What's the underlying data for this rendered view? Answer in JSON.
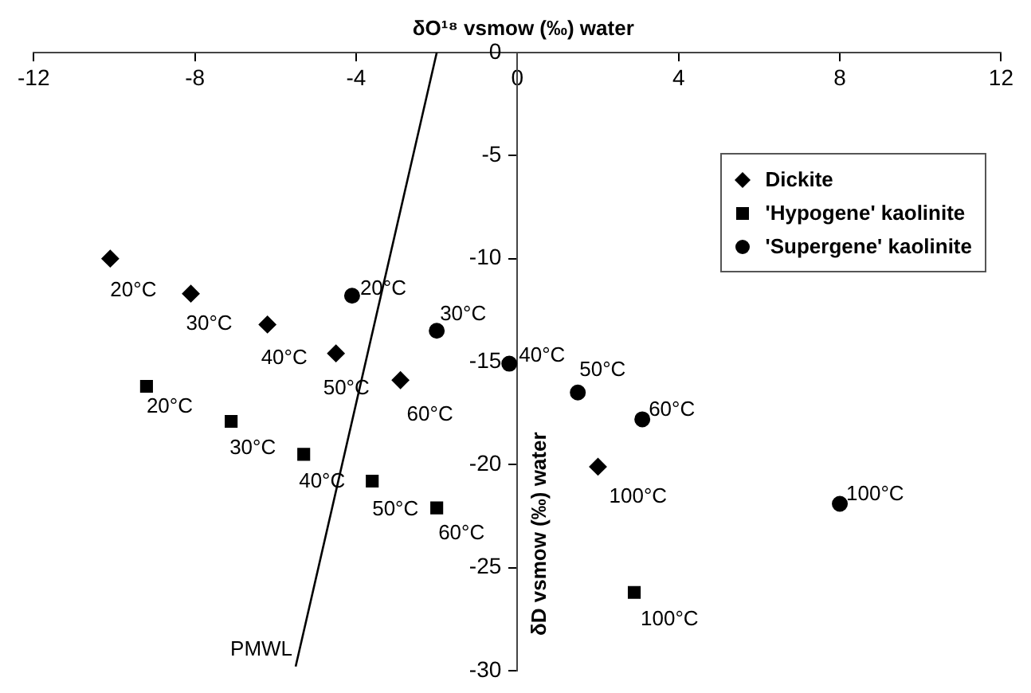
{
  "chart_data": {
    "type": "scatter",
    "xlabel": "δO¹⁸ vsmow (‰) water",
    "ylabel": "δD vsmow (‰) water",
    "xlim": [
      -12,
      12
    ],
    "xticks": [
      -12,
      -8,
      -4,
      0,
      4,
      8,
      12
    ],
    "ylim": [
      -30,
      0
    ],
    "yticks": [
      -30,
      -25,
      -20,
      -15,
      -10,
      -5,
      0
    ],
    "grid": false,
    "legend": "top right",
    "series": [
      {
        "name": "Dickite",
        "color": "#000000",
        "marker": "diamond",
        "x": [
          -10.1,
          -8.1,
          -6.2,
          -4.5,
          -2.9,
          2.0
        ],
        "values": [
          -10,
          -11.7,
          -13.2,
          -14.6,
          -15.9,
          -20.1
        ]
      },
      {
        "name": "'Hypogene' kaolinite",
        "color": "#000000",
        "marker": "square",
        "x": [
          -9.2,
          -7.1,
          -5.3,
          -3.6,
          -2.0,
          2.9
        ],
        "values": [
          -16.2,
          -17.9,
          -19.5,
          -20.8,
          -22.1,
          -26.2
        ]
      },
      {
        "name": "'Supergene' kaolinite",
        "color": "#000000",
        "marker": "circle",
        "x": [
          -4.1,
          -2.0,
          -0.2,
          1.5,
          3.1,
          8.0
        ],
        "values": [
          -11.8,
          -13.5,
          -15.1,
          -16.5,
          -17.8,
          -21.9
        ]
      },
      {
        "name": "PMWL",
        "type": "line",
        "color": "#000000",
        "marker": "none",
        "x": [
          -2.0,
          -5.5
        ],
        "values": [
          0,
          -29.8
        ]
      }
    ],
    "annotations": [
      {
        "text": "20°C",
        "x": -10.1,
        "y": -10
      },
      {
        "text": "30°C",
        "x": -8.1,
        "y": -11.7
      },
      {
        "text": "40°C",
        "x": -6.2,
        "y": -13.2
      },
      {
        "text": "50°C",
        "x": -4.5,
        "y": -14.6
      },
      {
        "text": "60°C",
        "x": -2.9,
        "y": -15.9
      },
      {
        "text": "100°C",
        "x": 2.0,
        "y": -20.1
      },
      {
        "text": "20°C",
        "x": -9.2,
        "y": -16.2
      },
      {
        "text": "30°C",
        "x": -7.1,
        "y": -17.9
      },
      {
        "text": "40°C",
        "x": -5.3,
        "y": -19.5
      },
      {
        "text": "50°C",
        "x": -3.6,
        "y": -20.8
      },
      {
        "text": "60°C",
        "x": -2.0,
        "y": -22.1
      },
      {
        "text": "100°C",
        "x": 2.9,
        "y": -26.2
      },
      {
        "text": "20°C",
        "x": -4.1,
        "y": -11.8
      },
      {
        "text": "30°C",
        "x": -2.0,
        "y": -13.5
      },
      {
        "text": "40°C",
        "x": -0.2,
        "y": -15.1
      },
      {
        "text": "50°C",
        "x": 1.5,
        "y": -16.5
      },
      {
        "text": "60°C",
        "x": 3.1,
        "y": -17.8
      },
      {
        "text": "100°C",
        "x": 8.0,
        "y": -21.9
      }
    ]
  }
}
